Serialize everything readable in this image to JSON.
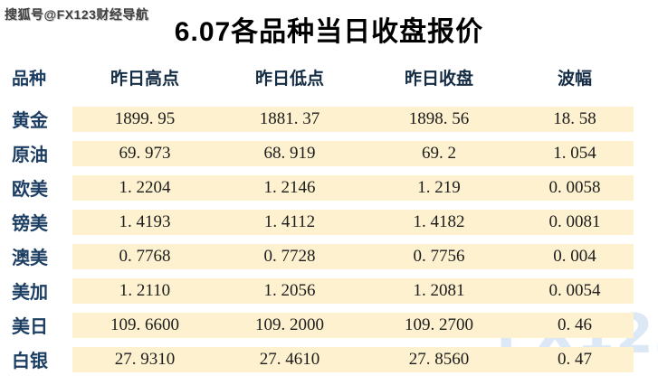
{
  "page": {
    "top_watermark": "搜狐号@FX123财经导航",
    "title": "6.07各品种当日收盘报价",
    "corner_watermark": "FX123"
  },
  "table": {
    "headers": [
      "品种",
      "昨日高点",
      "昨日低点",
      "昨日收盘",
      "波幅"
    ],
    "rows": [
      {
        "name": "黄金",
        "high": "1899.95",
        "low": "1881.37",
        "close": "1898.56",
        "range": "18.58"
      },
      {
        "name": "原油",
        "high": "69.973",
        "low": "68.919",
        "close": "69.2",
        "range": "1.054"
      },
      {
        "name": "欧美",
        "high": "1.2204",
        "low": "1.2146",
        "close": "1.219",
        "range": "0.0058"
      },
      {
        "name": "镑美",
        "high": "1.4193",
        "low": "1.4112",
        "close": "1.4182",
        "range": "0.0081"
      },
      {
        "name": "澳美",
        "high": "0.7768",
        "low": "0.7728",
        "close": "0.7756",
        "range": "0.004"
      },
      {
        "name": "美加",
        "high": "1.2110",
        "low": "1.2056",
        "close": "1.2081",
        "range": "0.0054"
      },
      {
        "name": "美日",
        "high": "109.6600",
        "low": "109.2000",
        "close": "109.2700",
        "range": "0.46"
      },
      {
        "name": "白银",
        "high": "27.9310",
        "low": "27.4610",
        "close": "27.8560",
        "range": "0.47"
      }
    ]
  },
  "colors": {
    "row_band": "#FDF1CF",
    "label_text": "#1D3E63",
    "header_text": "#152C45",
    "number_text": "#1C1C1C",
    "title_text": "#000000",
    "corner_watermark_blue": "#DCE8F5",
    "top_watermark_gray": "#3F3F3F"
  },
  "chart_data": {
    "type": "table",
    "title": "6.07各品种当日收盘报价",
    "columns": [
      "品种",
      "昨日高点",
      "昨日低点",
      "昨日收盘",
      "波幅"
    ],
    "rows": [
      [
        "黄金",
        1899.95,
        1881.37,
        1898.56,
        18.58
      ],
      [
        "原油",
        69.973,
        68.919,
        69.2,
        1.054
      ],
      [
        "欧美",
        1.2204,
        1.2146,
        1.219,
        0.0058
      ],
      [
        "镑美",
        1.4193,
        1.4112,
        1.4182,
        0.0081
      ],
      [
        "澳美",
        0.7768,
        0.7728,
        0.7756,
        0.004
      ],
      [
        "美加",
        1.211,
        1.2056,
        1.2081,
        0.0054
      ],
      [
        "美日",
        109.66,
        109.2,
        109.27,
        0.46
      ],
      [
        "白银",
        27.931,
        27.461,
        27.856,
        0.47
      ]
    ]
  }
}
